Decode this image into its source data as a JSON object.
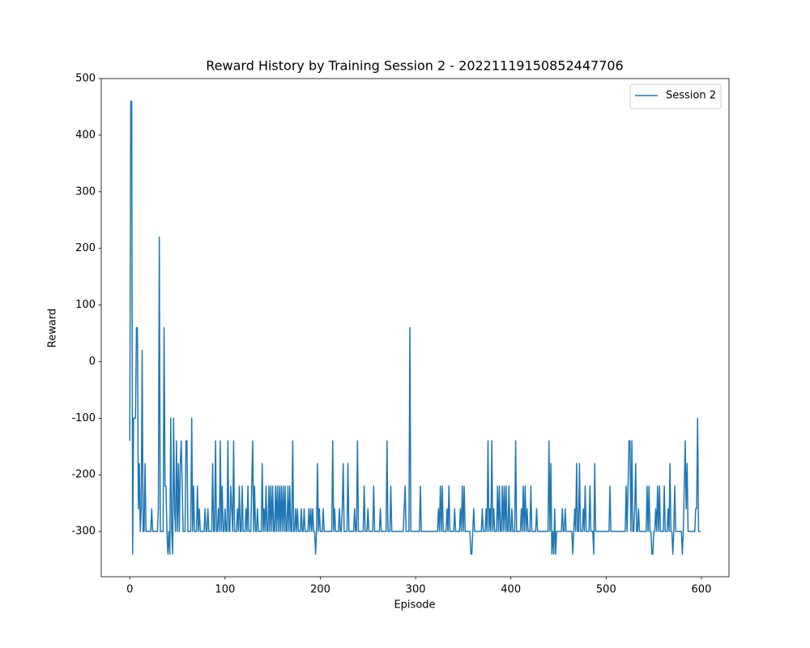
{
  "chart_data": {
    "type": "line",
    "title": "Reward History by Training Session 2 - 20221119150852447706",
    "x_label": "Episode",
    "y_label": "Reward",
    "x": [
      0,
      1,
      2,
      3,
      4,
      5,
      6,
      7,
      8,
      9,
      10,
      11,
      12,
      13,
      14,
      15,
      16,
      17,
      18,
      19,
      20,
      21,
      22,
      23,
      24,
      25,
      26,
      27,
      28,
      29,
      30,
      31,
      32,
      33,
      34,
      35,
      36,
      37,
      38,
      39,
      40,
      41,
      42,
      43,
      44,
      45,
      46,
      47,
      48,
      49,
      50,
      51,
      52,
      53,
      54,
      55,
      56,
      57,
      58,
      59,
      60,
      61,
      62,
      63,
      64,
      65,
      66,
      67,
      68,
      69,
      70,
      71,
      72,
      73,
      74,
      75,
      76,
      77,
      78,
      79,
      80,
      81,
      82,
      83,
      84,
      85,
      86,
      87,
      88,
      89,
      90,
      91,
      92,
      93,
      94,
      95,
      96,
      97,
      98,
      99,
      100,
      101,
      102,
      103,
      104,
      105,
      106,
      107,
      108,
      109,
      110,
      111,
      112,
      113,
      114,
      115,
      116,
      117,
      118,
      119,
      120,
      121,
      122,
      123,
      124,
      125,
      126,
      127,
      128,
      129,
      130,
      131,
      132,
      133,
      134,
      135,
      136,
      137,
      138,
      139,
      140,
      141,
      142,
      143,
      144,
      145,
      146,
      147,
      148,
      149,
      150,
      151,
      152,
      153,
      154,
      155,
      156,
      157,
      158,
      159,
      160,
      161,
      162,
      163,
      164,
      165,
      166,
      167,
      168,
      169,
      170,
      171,
      172,
      173,
      174,
      175,
      176,
      177,
      178,
      179,
      180,
      181,
      182,
      183,
      184,
      185,
      186,
      187,
      188,
      189,
      190,
      191,
      192,
      193,
      194,
      195,
      196,
      197,
      198,
      199,
      200,
      201,
      202,
      203,
      204,
      205,
      206,
      207,
      208,
      209,
      210,
      211,
      212,
      213,
      214,
      215,
      216,
      217,
      218,
      219,
      220,
      221,
      222,
      223,
      224,
      225,
      226,
      227,
      228,
      229,
      230,
      231,
      232,
      233,
      234,
      235,
      236,
      237,
      238,
      239,
      240,
      241,
      242,
      243,
      244,
      245,
      246,
      247,
      248,
      249,
      250,
      251,
      252,
      253,
      254,
      255,
      256,
      257,
      258,
      259,
      260,
      261,
      262,
      263,
      264,
      265,
      266,
      267,
      268,
      269,
      270,
      271,
      272,
      273,
      274,
      275,
      276,
      277,
      278,
      279,
      280,
      281,
      282,
      283,
      284,
      285,
      286,
      287,
      288,
      289,
      290,
      291,
      292,
      293,
      294,
      295,
      296,
      297,
      298,
      299,
      300,
      301,
      302,
      303,
      304,
      305,
      306,
      307,
      308,
      309,
      310,
      311,
      312,
      313,
      314,
      315,
      316,
      317,
      318,
      319,
      320,
      321,
      322,
      323,
      324,
      325,
      326,
      327,
      328,
      329,
      330,
      331,
      332,
      333,
      334,
      335,
      336,
      337,
      338,
      339,
      340,
      341,
      342,
      343,
      344,
      345,
      346,
      347,
      348,
      349,
      350,
      351,
      352,
      353,
      354,
      355,
      356,
      357,
      358,
      359,
      360,
      361,
      362,
      363,
      364,
      365,
      366,
      367,
      368,
      369,
      370,
      371,
      372,
      373,
      374,
      375,
      376,
      377,
      378,
      379,
      380,
      381,
      382,
      383,
      384,
      385,
      386,
      387,
      388,
      389,
      390,
      391,
      392,
      393,
      394,
      395,
      396,
      397,
      398,
      399,
      400,
      401,
      402,
      403,
      404,
      405,
      406,
      407,
      408,
      409,
      410,
      411,
      412,
      413,
      414,
      415,
      416,
      417,
      418,
      419,
      420,
      421,
      422,
      423,
      424,
      425,
      426,
      427,
      428,
      429,
      430,
      431,
      432,
      433,
      434,
      435,
      436,
      437,
      438,
      439,
      440,
      441,
      442,
      443,
      444,
      445,
      446,
      447,
      448,
      449,
      450,
      451,
      452,
      453,
      454,
      455,
      456,
      457,
      458,
      459,
      460,
      461,
      462,
      463,
      464,
      465,
      466,
      467,
      468,
      469,
      470,
      471,
      472,
      473,
      474,
      475,
      476,
      477,
      478,
      479,
      480,
      481,
      482,
      483,
      484,
      485,
      486,
      487,
      488,
      489,
      490,
      491,
      492,
      493,
      494,
      495,
      496,
      497,
      498,
      499,
      500,
      501,
      502,
      503,
      504,
      505,
      506,
      507,
      508,
      509,
      510,
      511,
      512,
      513,
      514,
      515,
      516,
      517,
      518,
      519,
      520,
      521,
      522,
      523,
      524,
      525,
      526,
      527,
      528,
      529,
      530,
      531,
      532,
      533,
      534,
      535,
      536,
      537,
      538,
      539,
      540,
      541,
      542,
      543,
      544,
      545,
      546,
      547,
      548,
      549,
      550,
      551,
      552,
      553,
      554,
      555,
      556,
      557,
      558,
      559,
      560,
      561,
      562,
      563,
      564,
      565,
      566,
      567,
      568,
      569,
      570,
      571,
      572,
      573,
      574,
      575,
      576,
      577,
      578,
      579,
      580,
      581,
      582,
      583,
      584,
      585,
      586,
      587,
      588,
      589,
      590,
      591,
      592,
      593,
      594,
      595,
      596,
      597,
      598,
      599
    ],
    "series": [
      {
        "name": "Session 2",
        "color": "#1f77b4",
        "values": [
          -140,
          460,
          460,
          -340,
          -100,
          -100,
          -100,
          60,
          60,
          -260,
          -180,
          -300,
          -260,
          20,
          -300,
          -300,
          -180,
          -300,
          -300,
          -300,
          -300,
          -300,
          -300,
          -260,
          -300,
          -300,
          -300,
          -300,
          -300,
          -300,
          -260,
          220,
          -300,
          -300,
          -300,
          -300,
          60,
          -220,
          -220,
          -300,
          -340,
          -300,
          -340,
          -100,
          -300,
          -340,
          -100,
          -260,
          -300,
          -140,
          -300,
          -180,
          -300,
          -180,
          -140,
          -220,
          -300,
          -300,
          -300,
          -140,
          -140,
          -300,
          -300,
          -300,
          -300,
          -100,
          -300,
          -220,
          -300,
          -300,
          -300,
          -220,
          -300,
          -260,
          -300,
          -300,
          -300,
          -300,
          -300,
          -260,
          -300,
          -300,
          -260,
          -300,
          -300,
          -300,
          -300,
          -180,
          -300,
          -300,
          -140,
          -300,
          -300,
          -260,
          -300,
          -140,
          -300,
          -220,
          -300,
          -300,
          -260,
          -300,
          -300,
          -140,
          -300,
          -300,
          -220,
          -260,
          -300,
          -140,
          -300,
          -300,
          -300,
          -260,
          -300,
          -220,
          -300,
          -300,
          -220,
          -300,
          -300,
          -300,
          -260,
          -300,
          -220,
          -300,
          -300,
          -300,
          -220,
          -140,
          -300,
          -220,
          -300,
          -300,
          -260,
          -300,
          -300,
          -300,
          -300,
          -180,
          -300,
          -260,
          -300,
          -220,
          -300,
          -300,
          -220,
          -300,
          -220,
          -300,
          -220,
          -300,
          -300,
          -220,
          -300,
          -220,
          -300,
          -220,
          -300,
          -220,
          -300,
          -220,
          -300,
          -220,
          -300,
          -300,
          -220,
          -300,
          -220,
          -300,
          -300,
          -140,
          -300,
          -300,
          -260,
          -300,
          -260,
          -300,
          -300,
          -300,
          -260,
          -300,
          -300,
          -260,
          -300,
          -300,
          -300,
          -300,
          -260,
          -300,
          -260,
          -300,
          -260,
          -300,
          -300,
          -340,
          -300,
          -180,
          -300,
          -260,
          -300,
          -300,
          -300,
          -260,
          -300,
          -300,
          -300,
          -300,
          -300,
          -300,
          -300,
          -300,
          -300,
          -140,
          -300,
          -260,
          -300,
          -300,
          -300,
          -300,
          -260,
          -300,
          -300,
          -260,
          -180,
          -300,
          -300,
          -300,
          -300,
          -180,
          -300,
          -300,
          -300,
          -300,
          -300,
          -300,
          -260,
          -300,
          -300,
          -140,
          -300,
          -300,
          -300,
          -300,
          -300,
          -300,
          -220,
          -300,
          -300,
          -300,
          -260,
          -300,
          -300,
          -300,
          -300,
          -300,
          -220,
          -300,
          -300,
          -300,
          -300,
          -300,
          -300,
          -260,
          -300,
          -300,
          -300,
          -300,
          -300,
          -300,
          -140,
          -300,
          -300,
          -300,
          -220,
          -300,
          -300,
          -300,
          -300,
          -300,
          -300,
          -300,
          -300,
          -300,
          -300,
          -300,
          -300,
          -300,
          -260,
          -220,
          -300,
          -300,
          -300,
          -300,
          60,
          -300,
          -300,
          -300,
          -300,
          -300,
          -300,
          -300,
          -300,
          -300,
          -300,
          -220,
          -300,
          -300,
          -300,
          -300,
          -300,
          -300,
          -300,
          -300,
          -300,
          -300,
          -300,
          -300,
          -300,
          -300,
          -300,
          -300,
          -300,
          -300,
          -260,
          -300,
          -220,
          -300,
          -220,
          -300,
          -300,
          -300,
          -300,
          -260,
          -300,
          -220,
          -300,
          -300,
          -300,
          -300,
          -300,
          -260,
          -300,
          -300,
          -300,
          -300,
          -300,
          -260,
          -300,
          -220,
          -300,
          -220,
          -300,
          -300,
          -300,
          -300,
          -300,
          -300,
          -340,
          -340,
          -300,
          -260,
          -300,
          -300,
          -300,
          -300,
          -300,
          -300,
          -300,
          -300,
          -260,
          -300,
          -300,
          -300,
          -260,
          -300,
          -140,
          -300,
          -260,
          -300,
          -140,
          -300,
          -260,
          -300,
          -300,
          -300,
          -220,
          -300,
          -220,
          -300,
          -300,
          -220,
          -300,
          -220,
          -300,
          -220,
          -300,
          -300,
          -220,
          -300,
          -300,
          -260,
          -300,
          -300,
          -300,
          -140,
          -300,
          -300,
          -300,
          -300,
          -300,
          -260,
          -300,
          -220,
          -300,
          -220,
          -300,
          -260,
          -300,
          -300,
          -300,
          -220,
          -300,
          -300,
          -300,
          -300,
          -300,
          -260,
          -300,
          -300,
          -300,
          -300,
          -300,
          -300,
          -300,
          -300,
          -300,
          -300,
          -300,
          -300,
          -140,
          -300,
          -180,
          -340,
          -300,
          -340,
          -260,
          -340,
          -300,
          -300,
          -300,
          -300,
          -300,
          -300,
          -260,
          -300,
          -300,
          -260,
          -300,
          -300,
          -300,
          -300,
          -300,
          -300,
          -300,
          -340,
          -300,
          -260,
          -300,
          -180,
          -300,
          -300,
          -180,
          -300,
          -300,
          -300,
          -260,
          -300,
          -220,
          -300,
          -300,
          -300,
          -300,
          -220,
          -300,
          -300,
          -300,
          -340,
          -180,
          -300,
          -300,
          -300,
          -300,
          -300,
          -300,
          -300,
          -300,
          -300,
          -300,
          -300,
          -300,
          -300,
          -300,
          -300,
          -220,
          -300,
          -300,
          -300,
          -300,
          -300,
          -300,
          -300,
          -300,
          -300,
          -300,
          -300,
          -300,
          -300,
          -300,
          -300,
          -300,
          -220,
          -300,
          -220,
          -140,
          -140,
          -300,
          -140,
          -300,
          -300,
          -260,
          -180,
          -300,
          -300,
          -260,
          -300,
          -300,
          -300,
          -300,
          -300,
          -300,
          -300,
          -300,
          -220,
          -300,
          -220,
          -300,
          -300,
          -340,
          -340,
          -300,
          -300,
          -260,
          -300,
          -220,
          -300,
          -220,
          -300,
          -300,
          -300,
          -300,
          -220,
          -300,
          -300,
          -300,
          -260,
          -300,
          -180,
          -300,
          -300,
          -340,
          -300,
          -220,
          -300,
          -300,
          -300,
          -300,
          -300,
          -300,
          -300,
          -340,
          -300,
          -220,
          -140,
          -260,
          -180,
          -300,
          -300,
          -300,
          -300,
          -300,
          -300,
          -300,
          -300,
          -260,
          -260,
          -100,
          -300,
          -300,
          -300
        ]
      }
    ],
    "xlim": [
      -29.95,
      628.95
    ],
    "xticks": [
      0,
      100,
      200,
      300,
      400,
      500,
      600
    ],
    "ylim": [
      -380,
      500
    ],
    "yticks": [
      -300,
      -200,
      -100,
      0,
      100,
      200,
      300,
      400,
      500
    ],
    "grid": false,
    "legend": "upper right"
  }
}
